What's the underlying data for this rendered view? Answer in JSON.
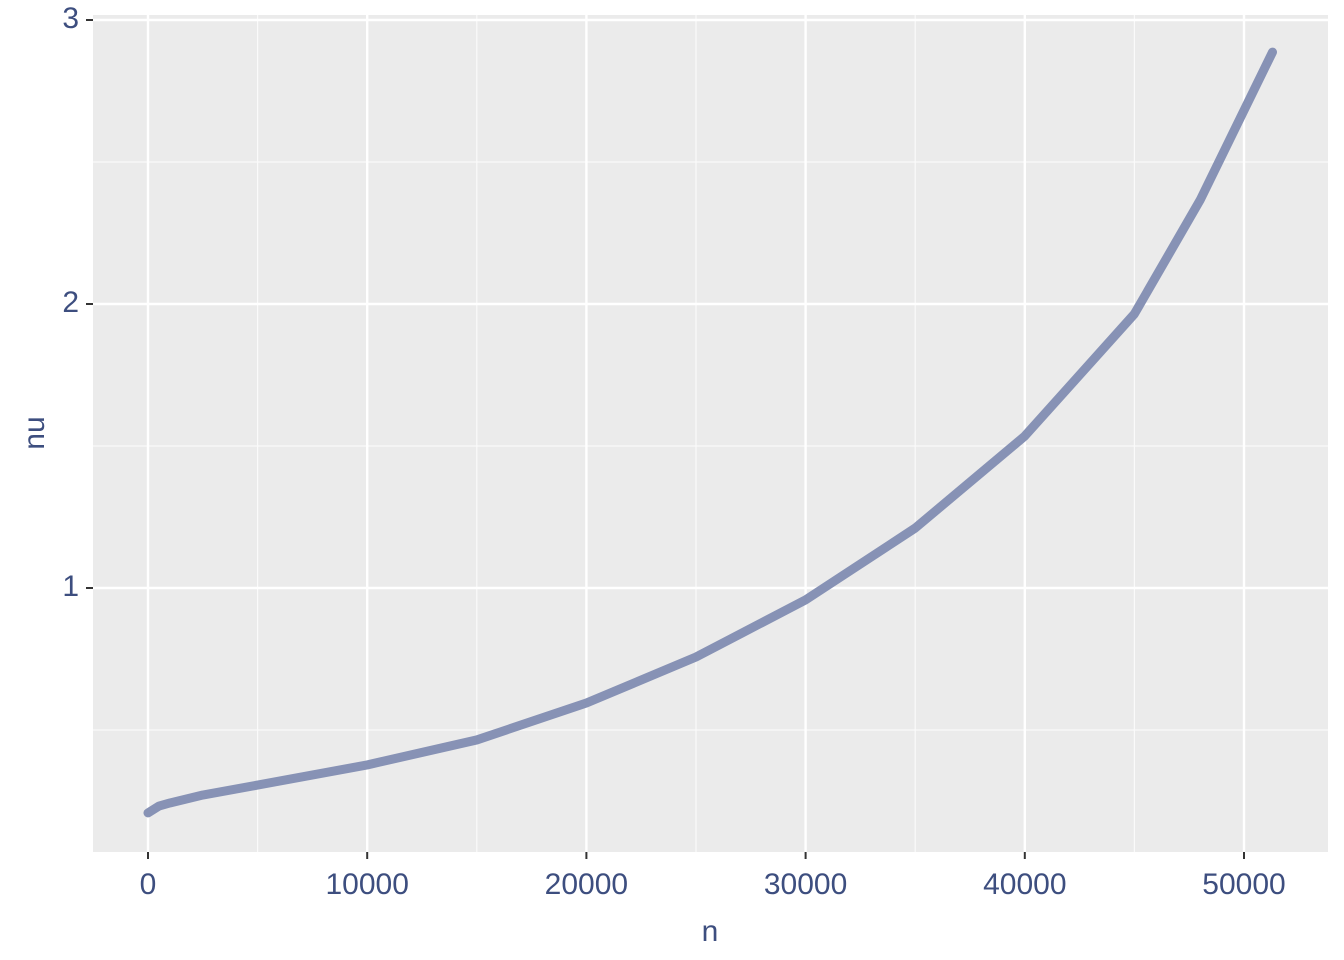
{
  "chart_data": {
    "type": "line",
    "x_label": "n",
    "y_label": "nu",
    "x": [
      0,
      500,
      1000,
      2500,
      5000,
      10000,
      15000,
      20000,
      25000,
      30000,
      35000,
      40000,
      45000,
      48000,
      51300
    ],
    "series": [
      {
        "color": "#8792b5",
        "values": [
          0.208,
          0.232,
          0.243,
          0.271,
          0.306,
          0.377,
          0.465,
          0.595,
          0.757,
          0.958,
          1.211,
          1.535,
          1.965,
          2.366,
          2.887
        ]
      }
    ],
    "xlim": [
      -2509,
      53832
    ],
    "ylim": [
      0.0704,
      3.0176
    ],
    "xticks": [
      0,
      10000,
      20000,
      30000,
      40000,
      50000
    ],
    "yticks": [
      1,
      2,
      3
    ],
    "x_minor_ticks": [
      5000,
      15000,
      25000,
      35000,
      45000
    ],
    "y_minor_ticks": [
      0.5,
      1.5,
      2.5
    ],
    "grid": true
  }
}
